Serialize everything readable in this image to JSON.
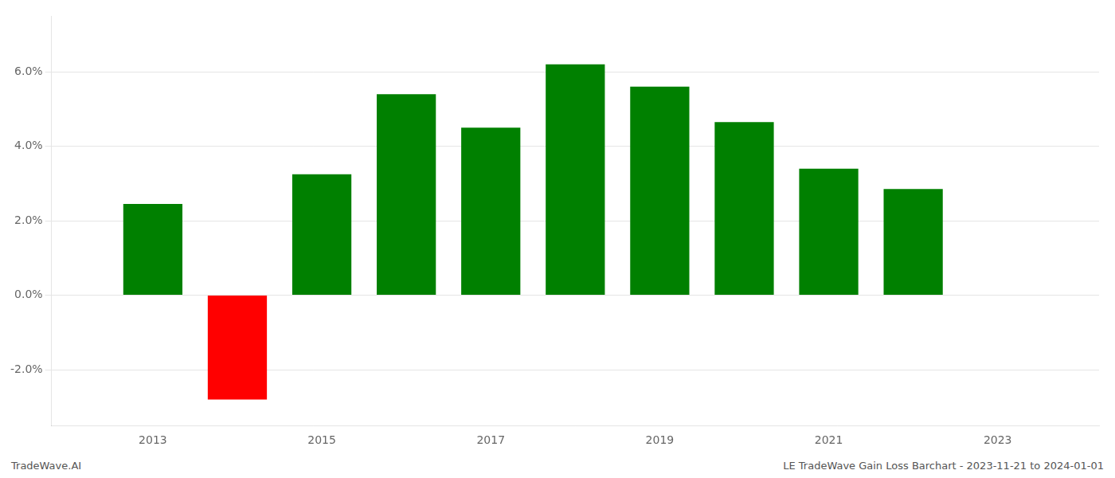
{
  "chart_data": {
    "type": "bar",
    "x": [
      2013,
      2014,
      2015,
      2016,
      2017,
      2018,
      2019,
      2020,
      2021,
      2022
    ],
    "values": [
      0.0245,
      -0.028,
      0.0325,
      0.054,
      0.045,
      0.062,
      0.056,
      0.0465,
      0.034,
      0.0285
    ],
    "colors": [
      "#008000",
      "#ff0000",
      "#008000",
      "#008000",
      "#008000",
      "#008000",
      "#008000",
      "#008000",
      "#008000",
      "#008000"
    ],
    "xlim": [
      2011.8,
      2024.2
    ],
    "xticks": [
      2013,
      2015,
      2017,
      2019,
      2021,
      2023
    ],
    "ylim": [
      -0.035,
      0.075
    ],
    "yticks": [
      {
        "value": -0.02,
        "label": "-2.0%"
      },
      {
        "value": 0.0,
        "label": "0.0%"
      },
      {
        "value": 0.02,
        "label": "2.0%"
      },
      {
        "value": 0.04,
        "label": "4.0%"
      },
      {
        "value": 0.06,
        "label": "6.0%"
      }
    ],
    "grid": "y",
    "annotations": [
      "TradeWave.AI",
      "LE TradeWave Gain Loss Barchart - 2023-11-21 to 2024-01-01"
    ]
  }
}
